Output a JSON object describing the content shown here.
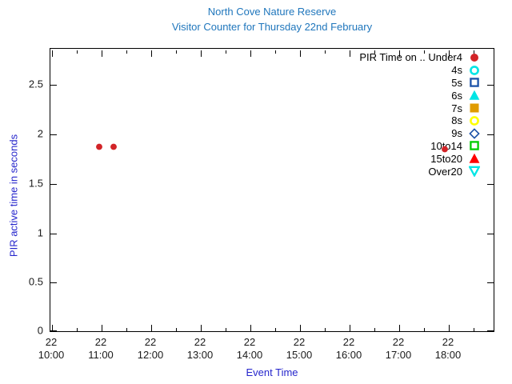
{
  "chart_data": {
    "type": "scatter",
    "title": "North Cove Nature Reserve",
    "subtitle": "Visitor Counter for Thursday 22nd February",
    "xlabel": "Event Time",
    "ylabel": "PIR active time in seconds",
    "x_day_label": "22",
    "x_ticks": [
      "10:00",
      "11:00",
      "12:00",
      "13:00",
      "14:00",
      "15:00",
      "16:00",
      "17:00",
      "18:00"
    ],
    "x_minor_ticks": [
      "10:30",
      "11:30",
      "12:30",
      "13:30",
      "14:30",
      "15:30",
      "16:30",
      "17:30",
      "18:30"
    ],
    "x_range": [
      "09:58",
      "18:56"
    ],
    "y_ticks": [
      0,
      0.5,
      1,
      1.5,
      2,
      2.5
    ],
    "y_range": [
      0,
      2.86
    ],
    "grid": false,
    "legend_position": "top-right-inside",
    "legend": [
      {
        "label": "PIR Time on .. Under4",
        "marker": "circle-filled",
        "color": "#d22428"
      },
      {
        "label": "4s",
        "marker": "circle-open",
        "color": "#00e5e5"
      },
      {
        "label": "5s",
        "marker": "square-open",
        "color": "#1c52a8"
      },
      {
        "label": "6s",
        "marker": "triangle-up-filled",
        "color": "#00e5e5"
      },
      {
        "label": "7s",
        "marker": "square-filled",
        "color": "#e09c00"
      },
      {
        "label": "8s",
        "marker": "circle-open",
        "color": "#ffff00"
      },
      {
        "label": "9s",
        "marker": "diamond-open",
        "color": "#1c52a8"
      },
      {
        "label": "10to14",
        "marker": "square-open",
        "color": "#00cc00"
      },
      {
        "label": "15to20",
        "marker": "triangle-up-filled",
        "color": "#ff0000"
      },
      {
        "label": "Over20",
        "marker": "triangle-down-open",
        "color": "#00e5e5"
      }
    ],
    "series": [
      {
        "name": "Under4",
        "marker": "circle-filled",
        "color": "#d22428",
        "points": [
          {
            "time": "10:57",
            "value": 1.86
          },
          {
            "time": "11:14",
            "value": 1.86
          },
          {
            "time": "17:55",
            "value": 1.84
          }
        ]
      }
    ]
  },
  "colors": {
    "title": "#1f76bc",
    "axis_label": "#2626cc",
    "tick_label": "#1a1a1a",
    "axis_line": "#000000",
    "background": "#ffffff"
  }
}
